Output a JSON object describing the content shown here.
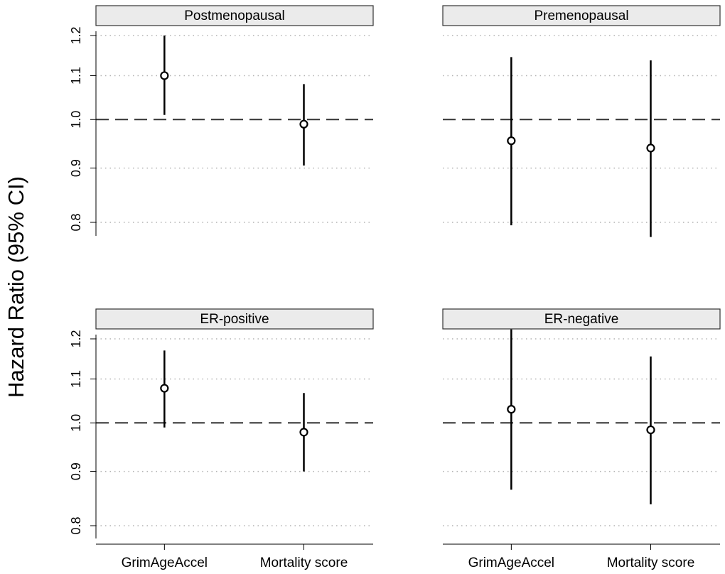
{
  "chart_data": {
    "type": "forest",
    "ylabel": "Hazard Ratio (95% CI)",
    "categories": [
      "GrimAgeAccel",
      "Mortality score"
    ],
    "yticks": [
      0.8,
      0.9,
      1.0,
      1.1,
      1.2
    ],
    "ylim": [
      0.77,
      1.25
    ],
    "reference_line": 1.0,
    "grid": "dotted horizontal",
    "panels": [
      {
        "title": "Postmenopausal",
        "points": [
          {
            "category": "GrimAgeAccel",
            "hr": 1.1,
            "lower": 1.01,
            "upper": 1.2
          },
          {
            "category": "Mortality score",
            "hr": 0.99,
            "lower": 0.905,
            "upper": 1.08
          }
        ]
      },
      {
        "title": "Premenopausal",
        "points": [
          {
            "category": "GrimAgeAccel",
            "hr": 0.955,
            "lower": 0.795,
            "upper": 1.145
          },
          {
            "category": "Mortality score",
            "hr": 0.94,
            "lower": 0.775,
            "upper": 1.137
          }
        ]
      },
      {
        "title": "ER-positive",
        "points": [
          {
            "category": "GrimAgeAccel",
            "hr": 1.078,
            "lower": 0.99,
            "upper": 1.17
          },
          {
            "category": "Mortality score",
            "hr": 0.98,
            "lower": 0.9,
            "upper": 1.067
          }
        ]
      },
      {
        "title": "ER-negative",
        "points": [
          {
            "category": "GrimAgeAccel",
            "hr": 1.03,
            "lower": 0.865,
            "upper": 1.225
          },
          {
            "category": "Mortality score",
            "hr": 0.985,
            "lower": 0.838,
            "upper": 1.155
          }
        ]
      }
    ]
  }
}
